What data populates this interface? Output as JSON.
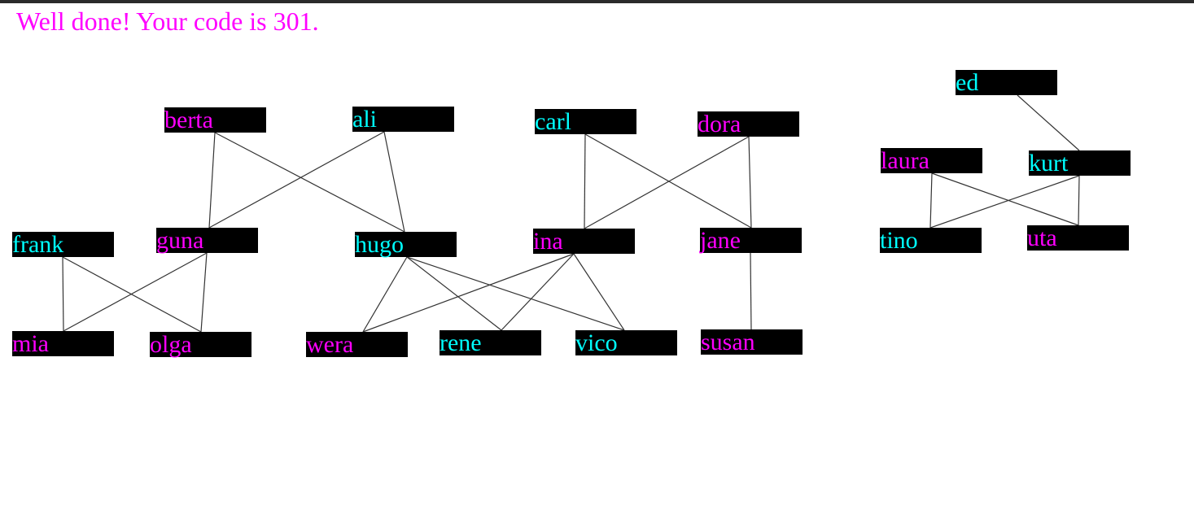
{
  "message": {
    "text": "Well done! Your code is 301.",
    "color": "#ff00ff"
  },
  "colors": {
    "cyan": "#00ffff",
    "magenta": "#ff00ff",
    "box": "#000000",
    "edge": "#333333"
  },
  "nodes": [
    {
      "id": "berta",
      "label": "berta",
      "color": "magenta"
    },
    {
      "id": "ali",
      "label": "ali",
      "color": "cyan"
    },
    {
      "id": "carl",
      "label": "carl",
      "color": "cyan"
    },
    {
      "id": "dora",
      "label": "dora",
      "color": "magenta"
    },
    {
      "id": "ed",
      "label": "ed",
      "color": "cyan"
    },
    {
      "id": "laura",
      "label": "laura",
      "color": "magenta"
    },
    {
      "id": "kurt",
      "label": "kurt",
      "color": "cyan"
    },
    {
      "id": "frank",
      "label": "frank",
      "color": "cyan"
    },
    {
      "id": "guna",
      "label": "guna",
      "color": "magenta"
    },
    {
      "id": "hugo",
      "label": "hugo",
      "color": "cyan"
    },
    {
      "id": "ina",
      "label": "ina",
      "color": "magenta"
    },
    {
      "id": "jane",
      "label": "jane",
      "color": "magenta"
    },
    {
      "id": "tino",
      "label": "tino",
      "color": "cyan"
    },
    {
      "id": "uta",
      "label": "uta",
      "color": "magenta"
    },
    {
      "id": "mia",
      "label": "mia",
      "color": "magenta"
    },
    {
      "id": "olga",
      "label": "olga",
      "color": "magenta"
    },
    {
      "id": "wera",
      "label": "wera",
      "color": "magenta"
    },
    {
      "id": "rene",
      "label": "rene",
      "color": "cyan"
    },
    {
      "id": "vico",
      "label": "vico",
      "color": "cyan"
    },
    {
      "id": "susan",
      "label": "susan",
      "color": "magenta"
    }
  ],
  "edges": [
    [
      "berta",
      "guna"
    ],
    [
      "berta",
      "hugo"
    ],
    [
      "ali",
      "guna"
    ],
    [
      "ali",
      "hugo"
    ],
    [
      "carl",
      "ina"
    ],
    [
      "carl",
      "jane"
    ],
    [
      "dora",
      "ina"
    ],
    [
      "dora",
      "jane"
    ],
    [
      "ed",
      "kurt"
    ],
    [
      "laura",
      "tino"
    ],
    [
      "laura",
      "uta"
    ],
    [
      "kurt",
      "tino"
    ],
    [
      "kurt",
      "uta"
    ],
    [
      "frank",
      "mia"
    ],
    [
      "frank",
      "olga"
    ],
    [
      "guna",
      "mia"
    ],
    [
      "guna",
      "olga"
    ],
    [
      "hugo",
      "wera"
    ],
    [
      "hugo",
      "rene"
    ],
    [
      "hugo",
      "vico"
    ],
    [
      "ina",
      "wera"
    ],
    [
      "ina",
      "rene"
    ],
    [
      "ina",
      "vico"
    ],
    [
      "jane",
      "susan"
    ]
  ]
}
